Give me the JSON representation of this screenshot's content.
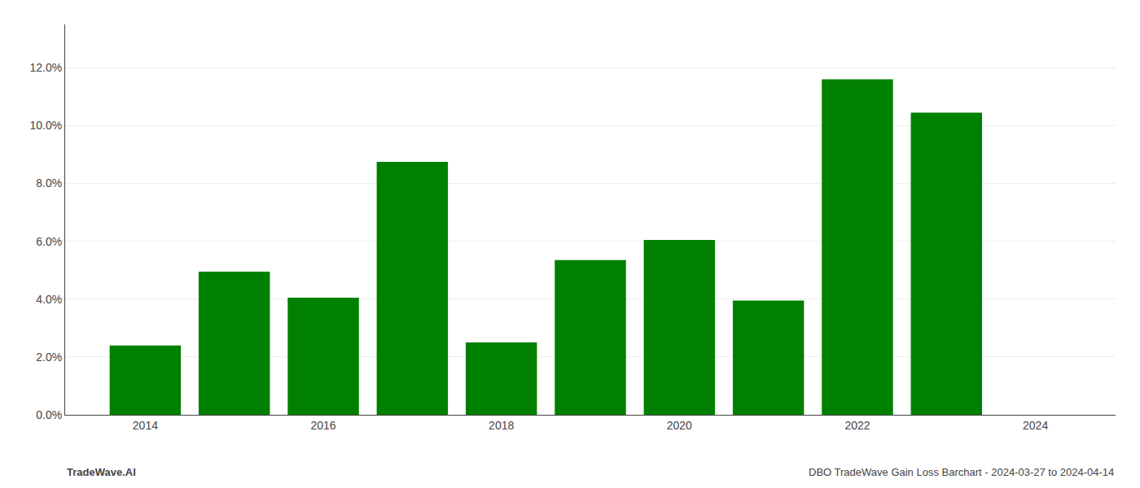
{
  "chart_data": {
    "type": "bar",
    "x": [
      2014,
      2015,
      2016,
      2017,
      2018,
      2019,
      2020,
      2021,
      2022,
      2023
    ],
    "values": [
      0.024,
      0.0495,
      0.0405,
      0.0875,
      0.025,
      0.0535,
      0.0605,
      0.0395,
      0.116,
      0.1045
    ],
    "color": "#008000",
    "xlim": [
      2013.1,
      2024.9
    ],
    "xticks": [
      2014,
      2016,
      2018,
      2020,
      2022,
      2024
    ],
    "ylim": [
      0,
      0.135
    ],
    "yticks": [
      {
        "value": 0.0,
        "label": "0.0%"
      },
      {
        "value": 0.02,
        "label": "2.0%"
      },
      {
        "value": 0.04,
        "label": "4.0%"
      },
      {
        "value": 0.06,
        "label": "6.0%"
      },
      {
        "value": 0.08,
        "label": "8.0%"
      },
      {
        "value": 0.1,
        "label": "10.0%"
      },
      {
        "value": 0.12,
        "label": "12.0%"
      }
    ],
    "grid": true,
    "annotations": [
      "TradeWave.AI",
      "DBO TradeWave Gain Loss Barchart - 2024-03-27 to 2024-04-14"
    ]
  }
}
